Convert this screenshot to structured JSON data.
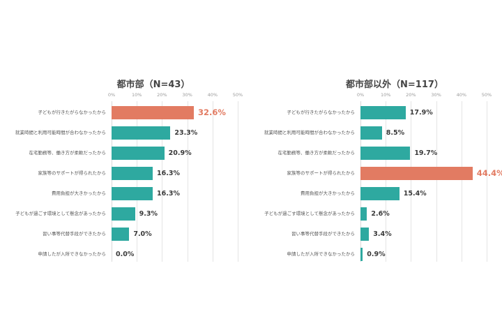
{
  "colors": {
    "primary": "#2ea9a0",
    "highlight": "#e27b62",
    "grid": "#e4e4e4",
    "label": "#555555"
  },
  "chart_data": [
    {
      "type": "bar",
      "orientation": "horizontal",
      "title": "都市部（N=43）",
      "xlabel": "",
      "ylabel": "",
      "xlim": [
        0,
        50
      ],
      "x_ticks": [
        "0%",
        "10%",
        "20%",
        "30%",
        "40%",
        "50%"
      ],
      "grid": true,
      "categories": [
        "子どもが行きたがらなかったから",
        "就業時間と利用可能時間が合わなかったから",
        "在宅勤務等、働き方が柔軟だったから",
        "家族等のサポートが得られたから",
        "費用負担が大きかったから",
        "子どもが過ごす環境として懸念があったから",
        "習い事等代替手段ができたから",
        "申請したが入所できなかったから"
      ],
      "values": [
        32.6,
        23.3,
        20.9,
        16.3,
        16.3,
        9.3,
        7.0,
        0.0
      ],
      "value_labels": [
        "32.6%",
        "23.3%",
        "20.9%",
        "16.3%",
        "16.3%",
        "9.3%",
        "7.0%",
        "0.0%"
      ],
      "highlight_index": 0
    },
    {
      "type": "bar",
      "orientation": "horizontal",
      "title": "都市部以外（N=117）",
      "xlabel": "",
      "ylabel": "",
      "xlim": [
        0,
        50
      ],
      "x_ticks": [
        "0%",
        "10%",
        "20%",
        "30%",
        "40%",
        "50%"
      ],
      "grid": true,
      "categories": [
        "子どもが行きたがらなかったから",
        "就業時間と利用可能時間が合わなかったから",
        "在宅勤務等、働き方が柔軟だったから",
        "家族等のサポートが得られたから",
        "費用負担が大きかったから",
        "子どもが過ごす環境として懸念があったから",
        "習い事等代替手段ができたから",
        "申請したが入所できなかったから"
      ],
      "values": [
        17.9,
        8.5,
        19.7,
        44.4,
        15.4,
        2.6,
        3.4,
        0.9
      ],
      "value_labels": [
        "17.9%",
        "8.5%",
        "19.7%",
        "44.4%",
        "15.4%",
        "2.6%",
        "3.4%",
        "0.9%"
      ],
      "highlight_index": 3
    }
  ]
}
